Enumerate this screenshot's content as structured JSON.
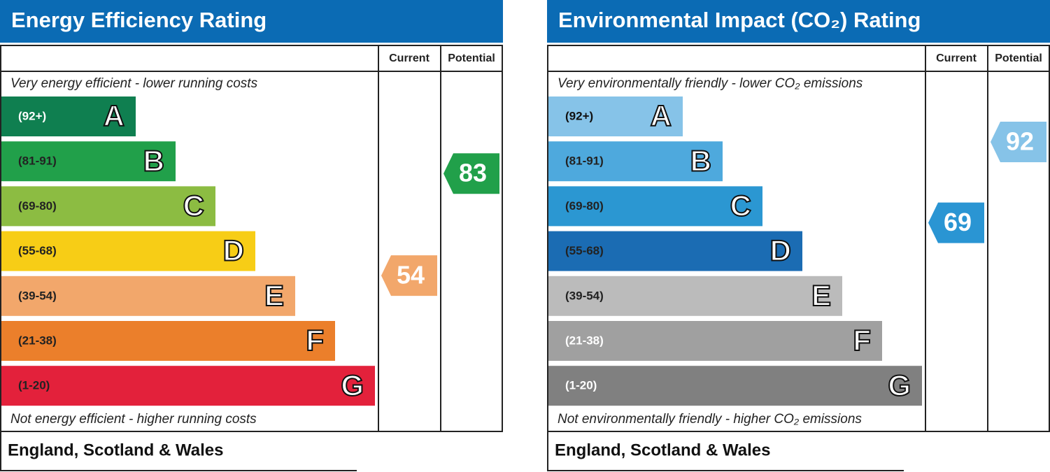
{
  "panels": [
    {
      "title": "Energy Efficiency Rating",
      "current_header": "Current",
      "potential_header": "Potential",
      "top_note": "Very energy efficient - lower running costs",
      "bottom_note": "Not energy efficient - higher running costs",
      "footer": "England, Scotland & Wales",
      "bands": [
        {
          "range": "(92+)",
          "letter": "A",
          "color": "#0f7f50",
          "text_color": "#ffffff"
        },
        {
          "range": "(81-91)",
          "letter": "B",
          "color": "#21a04a",
          "text_color": "#222222"
        },
        {
          "range": "(69-80)",
          "letter": "C",
          "color": "#8cbc42",
          "text_color": "#222222"
        },
        {
          "range": "(55-68)",
          "letter": "D",
          "color": "#f7cd16",
          "text_color": "#222222"
        },
        {
          "range": "(39-54)",
          "letter": "E",
          "color": "#f2a76b",
          "text_color": "#222222"
        },
        {
          "range": "(21-38)",
          "letter": "F",
          "color": "#eb7f2b",
          "text_color": "#222222"
        },
        {
          "range": "(1-20)",
          "letter": "G",
          "color": "#e3213b",
          "text_color": "#222222"
        }
      ],
      "current": {
        "value": 54,
        "color": "#f2a76b"
      },
      "potential": {
        "value": 83,
        "color": "#21a04a"
      }
    },
    {
      "title": "Environmental Impact (CO₂) Rating",
      "current_header": "Current",
      "potential_header": "Potential",
      "top_note": "Very environmentally friendly - lower CO₂ emissions",
      "bottom_note": "Not environmentally friendly - higher CO₂ emissions",
      "footer": "England, Scotland & Wales",
      "bands": [
        {
          "range": "(92+)",
          "letter": "A",
          "color": "#86c3e8",
          "text_color": "#111111"
        },
        {
          "range": "(81-91)",
          "letter": "B",
          "color": "#4ea9dd",
          "text_color": "#222222"
        },
        {
          "range": "(69-80)",
          "letter": "C",
          "color": "#2b97d2",
          "text_color": "#222222"
        },
        {
          "range": "(55-68)",
          "letter": "D",
          "color": "#1b6cb3",
          "text_color": "#222222"
        },
        {
          "range": "(39-54)",
          "letter": "E",
          "color": "#bbbbbb",
          "text_color": "#222222"
        },
        {
          "range": "(21-38)",
          "letter": "F",
          "color": "#a0a0a0",
          "text_color": "#ffffff"
        },
        {
          "range": "(1-20)",
          "letter": "G",
          "color": "#808080",
          "text_color": "#ffffff"
        }
      ],
      "current": {
        "value": 69,
        "color": "#2a95d3"
      },
      "potential": {
        "value": 92,
        "color": "#86c3e8"
      }
    }
  ]
}
